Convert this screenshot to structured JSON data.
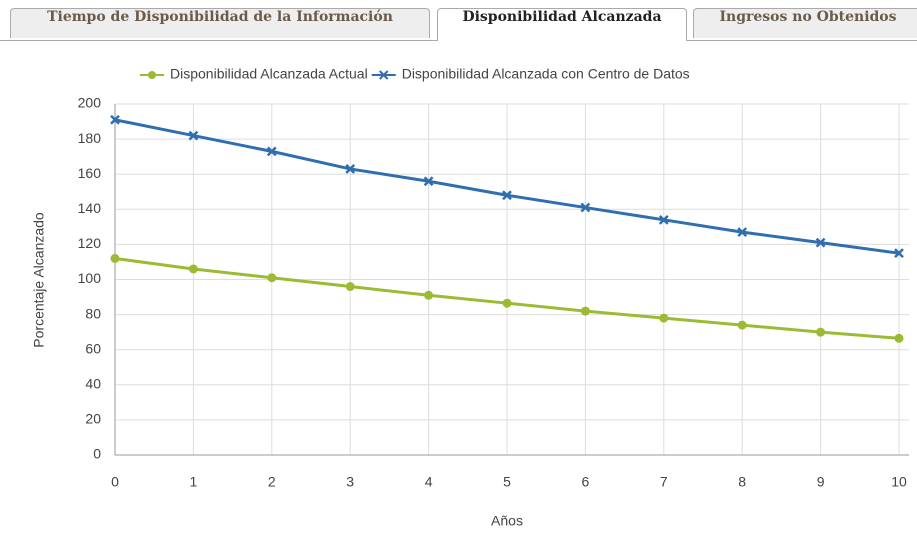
{
  "tabs": [
    "Tiempo de Disponibilidad de la Información",
    "Disponibilidad Alcanzada",
    "Ingresos no Obtenidos"
  ],
  "active_tab": 1,
  "chart_data": {
    "type": "line",
    "x_label": "Años",
    "y_label": "Porcentaje Alcanzado",
    "x": [
      0,
      1,
      2,
      3,
      4,
      5,
      6,
      7,
      8,
      9,
      10
    ],
    "series": [
      {
        "name": "Disponibilidad Alcanzada Actual",
        "color": "#9bbb34",
        "marker": "circle",
        "values": [
          112,
          106,
          101,
          96,
          91,
          86.5,
          82,
          78,
          74,
          70,
          66.5
        ]
      },
      {
        "name": "Disponibilidad Alcanzada con Centro de Datos",
        "color": "#2f6eaf",
        "marker": "x",
        "values": [
          191,
          182,
          173,
          163,
          156,
          148,
          141,
          134,
          127,
          121,
          115
        ]
      }
    ],
    "xlim": [
      0,
      10
    ],
    "xticks": [
      0,
      1,
      2,
      3,
      4,
      5,
      6,
      7,
      8,
      9,
      10
    ],
    "ylim": [
      0,
      200
    ],
    "yticks": [
      0,
      20,
      40,
      60,
      80,
      100,
      120,
      140,
      160,
      180,
      200
    ],
    "grid": true,
    "legend": "top"
  }
}
